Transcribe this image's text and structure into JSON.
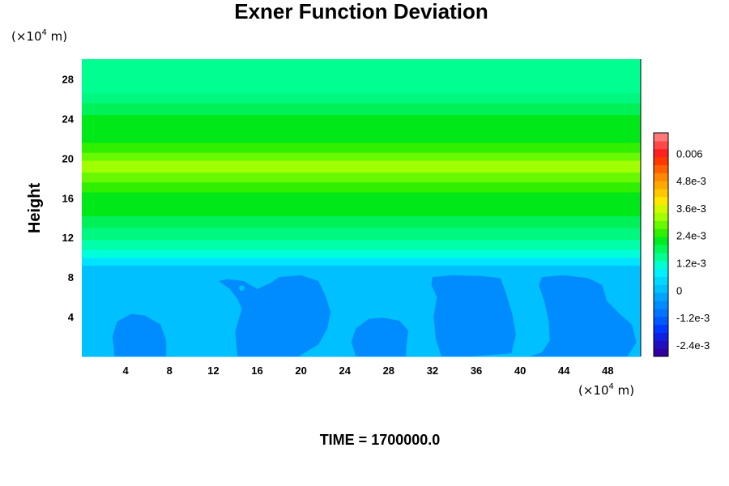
{
  "chart_data": {
    "type": "heatmap",
    "title": "Exner Function Deviation",
    "ylabel": "Height",
    "xlabel": "",
    "x_unit": {
      "prefix": "(×10",
      "exp": "4",
      "suffix": " m)"
    },
    "y_unit": {
      "prefix": "(×10",
      "exp": "4",
      "suffix": " m)"
    },
    "xlim": [
      0,
      51
    ],
    "ylim": [
      0,
      30
    ],
    "xticks": [
      {
        "v": 4,
        "label": "4"
      },
      {
        "v": 8,
        "label": "8"
      },
      {
        "v": 12,
        "label": "12"
      },
      {
        "v": 16,
        "label": "16"
      },
      {
        "v": 20,
        "label": "20"
      },
      {
        "v": 24,
        "label": "24"
      },
      {
        "v": 28,
        "label": "28"
      },
      {
        "v": 32,
        "label": "32"
      },
      {
        "v": 36,
        "label": "36"
      },
      {
        "v": 40,
        "label": "40"
      },
      {
        "v": 44,
        "label": "44"
      },
      {
        "v": 48,
        "label": "48"
      }
    ],
    "yticks": [
      {
        "v": 4,
        "label": "4"
      },
      {
        "v": 8,
        "label": "8"
      },
      {
        "v": 12,
        "label": "12"
      },
      {
        "v": 16,
        "label": "16"
      },
      {
        "v": 20,
        "label": "20"
      },
      {
        "v": 24,
        "label": "24"
      },
      {
        "v": 28,
        "label": "28"
      }
    ],
    "bands": [
      {
        "y0": 0,
        "y1": 9.2,
        "value": -0.0007,
        "color": "#00c0ff"
      },
      {
        "y0": 9.2,
        "y1": 10.0,
        "value": 0.0001,
        "color": "#00e4ff"
      },
      {
        "y0": 10.0,
        "y1": 10.8,
        "value": 0.0005,
        "color": "#00ffd8"
      },
      {
        "y0": 10.8,
        "y1": 11.8,
        "value": 0.0009,
        "color": "#00ffa8"
      },
      {
        "y0": 11.8,
        "y1": 13.0,
        "value": 0.0013,
        "color": "#00f880"
      },
      {
        "y0": 13.0,
        "y1": 14.2,
        "value": 0.0016,
        "color": "#00f058"
      },
      {
        "y0": 14.2,
        "y1": 16.6,
        "value": 0.0019,
        "color": "#00e818"
      },
      {
        "y0": 16.6,
        "y1": 17.6,
        "value": 0.0021,
        "color": "#30f000"
      },
      {
        "y0": 17.6,
        "y1": 18.6,
        "value": 0.0023,
        "color": "#68f800"
      },
      {
        "y0": 18.6,
        "y1": 19.8,
        "value": 0.0025,
        "color": "#a0ff00"
      },
      {
        "y0": 19.8,
        "y1": 20.6,
        "value": 0.0023,
        "color": "#68f800"
      },
      {
        "y0": 20.6,
        "y1": 21.6,
        "value": 0.0021,
        "color": "#30f000"
      },
      {
        "y0": 21.6,
        "y1": 24.4,
        "value": 0.0019,
        "color": "#00e818"
      },
      {
        "y0": 24.4,
        "y1": 25.6,
        "value": 0.0016,
        "color": "#00f058"
      },
      {
        "y0": 25.6,
        "y1": 26.6,
        "value": 0.0013,
        "color": "#00f880"
      },
      {
        "y0": 26.6,
        "y1": 30.0,
        "value": 0.0011,
        "color": "#00ff90"
      }
    ],
    "blobs": {
      "value": -0.0009,
      "color": "#008cff",
      "shapes": [
        [
          [
            3.0,
            0
          ],
          [
            2.8,
            2.0
          ],
          [
            3.2,
            3.5
          ],
          [
            4.5,
            4.3
          ],
          [
            5.8,
            4.1
          ],
          [
            7.2,
            3.2
          ],
          [
            7.7,
            1.6
          ],
          [
            7.7,
            0
          ]
        ],
        [
          [
            14.2,
            0
          ],
          [
            14.0,
            2.5
          ],
          [
            14.6,
            4.8
          ],
          [
            14.2,
            5.8
          ],
          [
            13.5,
            6.8
          ],
          [
            12.5,
            7.6
          ],
          [
            13.3,
            7.8
          ],
          [
            14.8,
            7.6
          ],
          [
            16.0,
            6.8
          ],
          [
            17.2,
            7.4
          ],
          [
            18.0,
            8.0
          ],
          [
            20.0,
            8.2
          ],
          [
            21.6,
            7.6
          ],
          [
            22.2,
            6.2
          ],
          [
            22.7,
            4.5
          ],
          [
            22.4,
            2.8
          ],
          [
            21.6,
            1.2
          ],
          [
            19.8,
            0
          ]
        ],
        [
          [
            25.0,
            0
          ],
          [
            24.6,
            1.5
          ],
          [
            25.0,
            2.8
          ],
          [
            26.2,
            3.8
          ],
          [
            27.5,
            3.9
          ],
          [
            29.0,
            3.6
          ],
          [
            29.8,
            2.6
          ],
          [
            29.6,
            1.0
          ],
          [
            29.6,
            0
          ]
        ],
        [
          [
            32.8,
            0
          ],
          [
            32.3,
            1.8
          ],
          [
            32.1,
            4.0
          ],
          [
            32.4,
            6.0
          ],
          [
            31.9,
            7.2
          ],
          [
            32.0,
            8.0
          ],
          [
            33.8,
            8.2
          ],
          [
            36.5,
            8.1
          ],
          [
            38.2,
            7.9
          ],
          [
            38.7,
            6.4
          ],
          [
            39.3,
            4.2
          ],
          [
            39.6,
            2.2
          ],
          [
            39.2,
            0.3
          ],
          [
            35.5,
            0
          ]
        ],
        [
          [
            40.9,
            0
          ],
          [
            42.0,
            0.4
          ],
          [
            42.7,
            1.6
          ],
          [
            42.6,
            3.6
          ],
          [
            42.2,
            5.6
          ],
          [
            41.7,
            7.2
          ],
          [
            42.0,
            8.0
          ],
          [
            44.0,
            8.2
          ],
          [
            46.2,
            7.9
          ],
          [
            47.5,
            7.2
          ],
          [
            47.9,
            5.6
          ],
          [
            49.0,
            4.4
          ],
          [
            50.2,
            3.2
          ],
          [
            50.6,
            1.4
          ],
          [
            49.8,
            0
          ]
        ]
      ]
    },
    "dots": [
      {
        "x": 14.6,
        "y": 6.9,
        "r": 0.25,
        "color": "#00c0ff"
      }
    ],
    "colorbar": {
      "min": -0.0029,
      "max": 0.0069,
      "colors": [
        "#3000a0",
        "#2010c0",
        "#1020e0",
        "#0038ff",
        "#0058ff",
        "#0074ff",
        "#008cff",
        "#00a4ff",
        "#00c0ff",
        "#00d8ff",
        "#00f0ff",
        "#00ffd0",
        "#00ff90",
        "#00f858",
        "#00ec20",
        "#30f000",
        "#68f800",
        "#a0ff00",
        "#d0f800",
        "#ffe800",
        "#ffc800",
        "#ffa800",
        "#ff8800",
        "#ff6000",
        "#ff3800",
        "#ff2020",
        "#ff4848",
        "#ff7878"
      ],
      "ticks": [
        {
          "v": 0.006,
          "label": "0.006"
        },
        {
          "v": 0.0048,
          "label": "4.8e-3"
        },
        {
          "v": 0.0036,
          "label": "3.6e-3"
        },
        {
          "v": 0.0024,
          "label": "2.4e-3"
        },
        {
          "v": 0.0012,
          "label": "1.2e-3"
        },
        {
          "v": 0,
          "label": "0"
        },
        {
          "v": -0.0012,
          "label": "-1.2e-3"
        },
        {
          "v": -0.0024,
          "label": "-2.4e-3"
        }
      ]
    },
    "caption": "TIME = 1700000.0"
  }
}
